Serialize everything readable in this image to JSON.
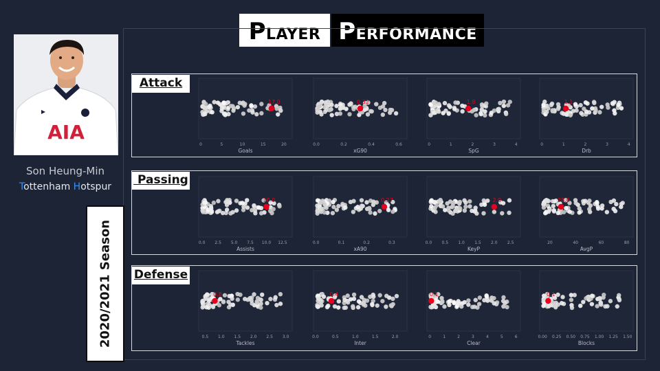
{
  "title": {
    "left_cap": "P",
    "left_rest": "LAYER",
    "right_cap": "P",
    "right_rest": "ERFORMANCE"
  },
  "player": {
    "name": "Son Heung-Min",
    "team_parts": [
      {
        "t": "T",
        "hl": true
      },
      {
        "t": "ottenham ",
        "hl": false
      },
      {
        "t": "H",
        "hl": true
      },
      {
        "t": "otspur",
        "hl": false
      }
    ],
    "shirt_text": "AIA"
  },
  "season": "2020/2021 Season",
  "colors": {
    "background": "#1d2436",
    "panel": "#1f2638",
    "dots": "#e6e6e6",
    "highlight": "#e8001c",
    "team_accent": "#3b8ff0"
  },
  "sections": [
    {
      "label": "Attack",
      "charts": [
        {
          "xlabel": "Goals",
          "ticks": [
            "0",
            "5",
            "10",
            "15",
            "20"
          ],
          "tick_vals": [
            0,
            5,
            10,
            15,
            20
          ],
          "xlim": [
            -0.5,
            22
          ],
          "player_value": 17,
          "value_label": "17.0"
        },
        {
          "xlabel": "xG90",
          "ticks": [
            "0.0",
            "0.2",
            "0.4",
            "0.6"
          ],
          "tick_vals": [
            0,
            0.2,
            0.4,
            0.6
          ],
          "xlim": [
            -0.02,
            0.66
          ],
          "player_value": 0.32,
          "value_label": "0.32"
        },
        {
          "xlabel": "SpG",
          "ticks": [
            "0",
            "1",
            "2",
            "3",
            "4"
          ],
          "tick_vals": [
            0,
            1,
            2,
            3,
            4
          ],
          "xlim": [
            -0.1,
            4.2
          ],
          "player_value": 1.8,
          "value_label": "1.8"
        },
        {
          "xlabel": "Drb",
          "ticks": [
            "0",
            "1",
            "2",
            "3",
            "4"
          ],
          "tick_vals": [
            0,
            1,
            2,
            3,
            4
          ],
          "xlim": [
            -0.1,
            4.2
          ],
          "player_value": 1.1,
          "value_label": "1.1"
        }
      ]
    },
    {
      "label": " Passing",
      "charts": [
        {
          "xlabel": "Assists",
          "ticks": [
            "0.0",
            "2.5",
            "5.0",
            "7.5",
            "10.0",
            "12.5"
          ],
          "tick_vals": [
            0,
            2.5,
            5,
            7.5,
            10,
            12.5
          ],
          "xlim": [
            -0.5,
            14
          ],
          "player_value": 10,
          "value_label": "10.0"
        },
        {
          "xlabel": "xA90",
          "ticks": [
            "0.0",
            "0.1",
            "0.2",
            "0.3"
          ],
          "tick_vals": [
            0,
            0.1,
            0.2,
            0.3
          ],
          "xlim": [
            -0.01,
            0.36
          ],
          "player_value": 0.27,
          "value_label": "0.27"
        },
        {
          "xlabel": "KeyP",
          "ticks": [
            "0.0",
            "0.5",
            "1.0",
            "1.5",
            "2.0",
            "2.5"
          ],
          "tick_vals": [
            0,
            0.5,
            1,
            1.5,
            2,
            2.5
          ],
          "xlim": [
            -0.05,
            2.8
          ],
          "player_value": 2.0,
          "value_label": "2.0"
        },
        {
          "xlabel": "AvgP",
          "ticks": [
            "20",
            "40",
            "60",
            "80"
          ],
          "tick_vals": [
            20,
            40,
            60,
            80
          ],
          "xlim": [
            12,
            85
          ],
          "player_value": 28.6,
          "value_label": "28.6"
        }
      ]
    },
    {
      "label": "Defense",
      "charts": [
        {
          "xlabel": "Tackles",
          "ticks": [
            "0.5",
            "1.0",
            "1.5",
            "2.0",
            "2.5",
            "3.0"
          ],
          "tick_vals": [
            0.5,
            1,
            1.5,
            2,
            2.5,
            3
          ],
          "xlim": [
            0.3,
            3.2
          ],
          "player_value": 0.8,
          "value_label": "0.8"
        },
        {
          "xlabel": "Inter",
          "ticks": [
            "0.0",
            "0.5",
            "1.0",
            "1.5",
            "2.0"
          ],
          "tick_vals": [
            0,
            0.5,
            1,
            1.5,
            2
          ],
          "xlim": [
            -0.05,
            2.3
          ],
          "player_value": 0.4,
          "value_label": "0.4"
        },
        {
          "xlabel": "Clear",
          "ticks": [
            "0",
            "1",
            "2",
            "3",
            "4",
            "5",
            "6"
          ],
          "tick_vals": [
            0,
            1,
            2,
            3,
            4,
            5,
            6
          ],
          "xlim": [
            -0.2,
            6.3
          ],
          "player_value": 0.1,
          "value_label": "0.1"
        },
        {
          "xlabel": "Blocks",
          "ticks": [
            "0.00",
            "0.25",
            "0.50",
            "0.75",
            "1.00",
            "1.25",
            "1.50"
          ],
          "tick_vals": [
            0,
            0.25,
            0.5,
            0.75,
            1,
            1.25,
            1.5
          ],
          "xlim": [
            -0.05,
            1.6
          ],
          "player_value": 0.1,
          "value_label": "0.1"
        }
      ]
    }
  ],
  "chart_data": [
    {
      "type": "scatter",
      "title": "Attack",
      "panels": [
        {
          "xlabel": "Goals",
          "xlim": [
            0,
            20
          ],
          "player_value": 17.0,
          "distribution_range": [
            0,
            21
          ]
        },
        {
          "xlabel": "xG90",
          "xlim": [
            0,
            0.6
          ],
          "player_value": 0.32,
          "distribution_range": [
            0,
            0.62
          ]
        },
        {
          "xlabel": "SpG",
          "xlim": [
            0,
            4
          ],
          "player_value": 1.8,
          "distribution_range": [
            0,
            4
          ]
        },
        {
          "xlabel": "Drb",
          "xlim": [
            0,
            4
          ],
          "player_value": 1.1,
          "distribution_range": [
            0,
            4
          ]
        }
      ]
    },
    {
      "type": "scatter",
      "title": "Passing",
      "panels": [
        {
          "xlabel": "Assists",
          "xlim": [
            0,
            12.5
          ],
          "player_value": 10.0,
          "distribution_range": [
            0,
            14
          ]
        },
        {
          "xlabel": "xA90",
          "xlim": [
            0,
            0.3
          ],
          "player_value": 0.27,
          "distribution_range": [
            0,
            0.35
          ]
        },
        {
          "xlabel": "KeyP",
          "xlim": [
            0,
            2.5
          ],
          "player_value": 2.0,
          "distribution_range": [
            0,
            2.7
          ]
        },
        {
          "xlabel": "AvgP",
          "xlim": [
            20,
            80
          ],
          "player_value": 28.6,
          "distribution_range": [
            15,
            82
          ]
        }
      ]
    },
    {
      "type": "scatter",
      "title": "Defense",
      "panels": [
        {
          "xlabel": "Tackles",
          "xlim": [
            0.5,
            3.0
          ],
          "player_value": 0.8,
          "distribution_range": [
            0.5,
            3.0
          ]
        },
        {
          "xlabel": "Inter",
          "xlim": [
            0,
            2.0
          ],
          "player_value": 0.4,
          "distribution_range": [
            0,
            2.2
          ]
        },
        {
          "xlabel": "Clear",
          "xlim": [
            0,
            6
          ],
          "player_value": 0.1,
          "distribution_range": [
            0,
            6
          ]
        },
        {
          "xlabel": "Blocks",
          "xlim": [
            0,
            1.5
          ],
          "player_value": 0.1,
          "distribution_range": [
            0,
            1.5
          ]
        }
      ]
    }
  ]
}
